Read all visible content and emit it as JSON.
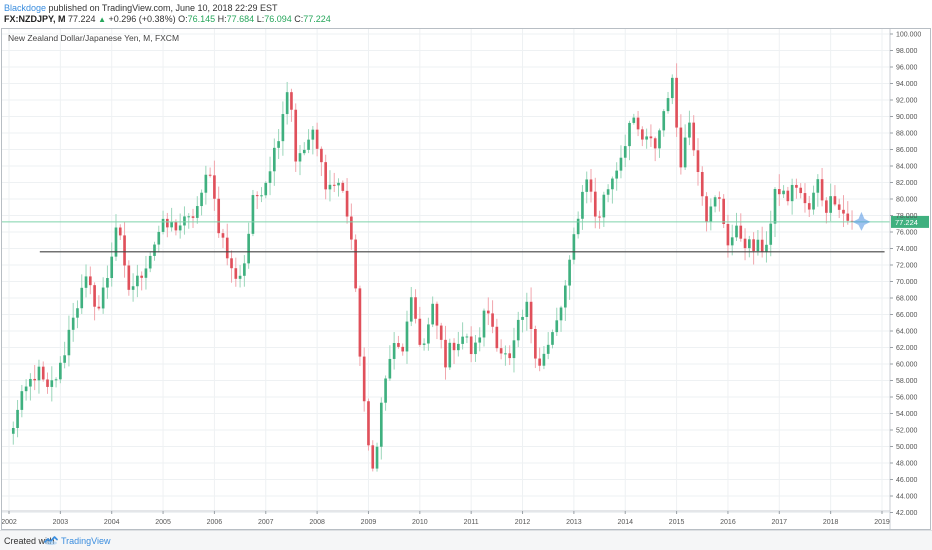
{
  "header": {
    "author": "Blackdoge",
    "published": "published on TradingView.com, June 10, 2018 22:29 EST",
    "symbol": "FX:NZDJPY, M",
    "price": "77.224",
    "change": "+0.296 (+0.38%)",
    "open_label": "O:",
    "open": "76.145",
    "high_label": "H:",
    "high": "77.684",
    "low_label": "L:",
    "low": "76.094",
    "close_label": "C:",
    "close": "77.224"
  },
  "footer": {
    "created_with": "Created with",
    "brand": "TradingView"
  },
  "colors": {
    "up": "#3fb07f",
    "down": "#e0505b",
    "wick_up": "#9ad6ba",
    "wick_down": "#f1a6ad",
    "grid": "#eef1f3",
    "level_line": "#444444",
    "price_line": "#7fd3ab",
    "price_tag": "#3fb07f",
    "marker": "#4a90e2"
  },
  "chart_data": {
    "type": "candlestick",
    "title": "New Zealand Dollar/Japanese Yen, M, FXCM",
    "timeframe": "M",
    "x_tick_labels": [
      "2002",
      "2003",
      "2004",
      "2005",
      "2006",
      "2007",
      "2008",
      "2009",
      "2010",
      "2011",
      "2012",
      "2013",
      "2014",
      "2015",
      "2016",
      "2017",
      "2018",
      "2019"
    ],
    "y_tick_labels": [
      "100.000",
      "98.000",
      "96.000",
      "94.000",
      "92.000",
      "90.000",
      "88.000",
      "86.000",
      "84.000",
      "82.000",
      "80.000",
      "78.000",
      "76.000",
      "74.000",
      "72.000",
      "70.000",
      "68.000",
      "66.000",
      "64.000",
      "62.000",
      "60.000",
      "58.000",
      "56.000",
      "54.000",
      "52.000",
      "50.000",
      "48.000",
      "46.000",
      "44.000",
      "42.000"
    ],
    "ylim": [
      41.8,
      100.4
    ],
    "xlim": [
      2001.95,
      2019.25
    ],
    "horizontal_level": {
      "value": 73.6,
      "from": 2002.6,
      "to": 2019.05
    },
    "last_price": 77.224,
    "last_price_label": "77.224",
    "keypoints": [
      [
        2002.0,
        51.2
      ],
      [
        2002.3,
        56.5
      ],
      [
        2002.55,
        59.3
      ],
      [
        2002.75,
        56.5
      ],
      [
        2003.0,
        59.5
      ],
      [
        2003.25,
        66.2
      ],
      [
        2003.5,
        69.8
      ],
      [
        2003.75,
        66.8
      ],
      [
        2003.95,
        71.5
      ],
      [
        2004.1,
        77.5
      ],
      [
        2004.3,
        69.0
      ],
      [
        2004.5,
        70.0
      ],
      [
        2004.75,
        73.5
      ],
      [
        2004.95,
        76.5
      ],
      [
        2005.25,
        76.8
      ],
      [
        2005.5,
        77.2
      ],
      [
        2005.75,
        80.0
      ],
      [
        2005.9,
        84.5
      ],
      [
        2006.05,
        77.5
      ],
      [
        2006.35,
        70.8
      ],
      [
        2006.55,
        71.0
      ],
      [
        2006.75,
        79.5
      ],
      [
        2007.0,
        82.5
      ],
      [
        2007.2,
        86.5
      ],
      [
        2007.45,
        94.5
      ],
      [
        2007.6,
        84.0
      ],
      [
        2007.9,
        88.0
      ],
      [
        2008.2,
        81.5
      ],
      [
        2008.45,
        82.0
      ],
      [
        2008.65,
        76.5
      ],
      [
        2008.8,
        64.0
      ],
      [
        2008.95,
        53.0
      ],
      [
        2009.05,
        45.5
      ],
      [
        2009.25,
        55.0
      ],
      [
        2009.45,
        62.0
      ],
      [
        2009.65,
        61.5
      ],
      [
        2009.85,
        67.5
      ],
      [
        2010.05,
        61.5
      ],
      [
        2010.25,
        66.5
      ],
      [
        2010.5,
        60.5
      ],
      [
        2010.65,
        62.5
      ],
      [
        2010.85,
        63.5
      ],
      [
        2011.05,
        61.0
      ],
      [
        2011.3,
        67.0
      ],
      [
        2011.55,
        62.0
      ],
      [
        2011.75,
        60.0
      ],
      [
        2011.9,
        64.0
      ],
      [
        2012.1,
        67.0
      ],
      [
        2012.3,
        60.0
      ],
      [
        2012.5,
        62.0
      ],
      [
        2012.7,
        65.5
      ],
      [
        2012.9,
        71.0
      ],
      [
        2013.05,
        77.5
      ],
      [
        2013.25,
        83.0
      ],
      [
        2013.45,
        77.0
      ],
      [
        2013.6,
        80.5
      ],
      [
        2013.9,
        85.0
      ],
      [
        2014.1,
        89.5
      ],
      [
        2014.35,
        87.0
      ],
      [
        2014.6,
        86.5
      ],
      [
        2014.85,
        93.5
      ],
      [
        2014.95,
        94.0
      ],
      [
        2015.05,
        84.0
      ],
      [
        2015.25,
        89.5
      ],
      [
        2015.45,
        83.0
      ],
      [
        2015.6,
        77.5
      ],
      [
        2015.8,
        80.5
      ],
      [
        2016.0,
        75.0
      ],
      [
        2016.2,
        76.0
      ],
      [
        2016.45,
        74.0
      ],
      [
        2016.65,
        74.0
      ],
      [
        2016.8,
        75.5
      ],
      [
        2016.95,
        81.5
      ],
      [
        2017.15,
        80.0
      ],
      [
        2017.35,
        82.0
      ],
      [
        2017.55,
        78.0
      ],
      [
        2017.75,
        82.0
      ],
      [
        2017.9,
        79.0
      ],
      [
        2018.1,
        80.5
      ],
      [
        2018.3,
        77.5
      ],
      [
        2018.45,
        77.224
      ]
    ]
  }
}
